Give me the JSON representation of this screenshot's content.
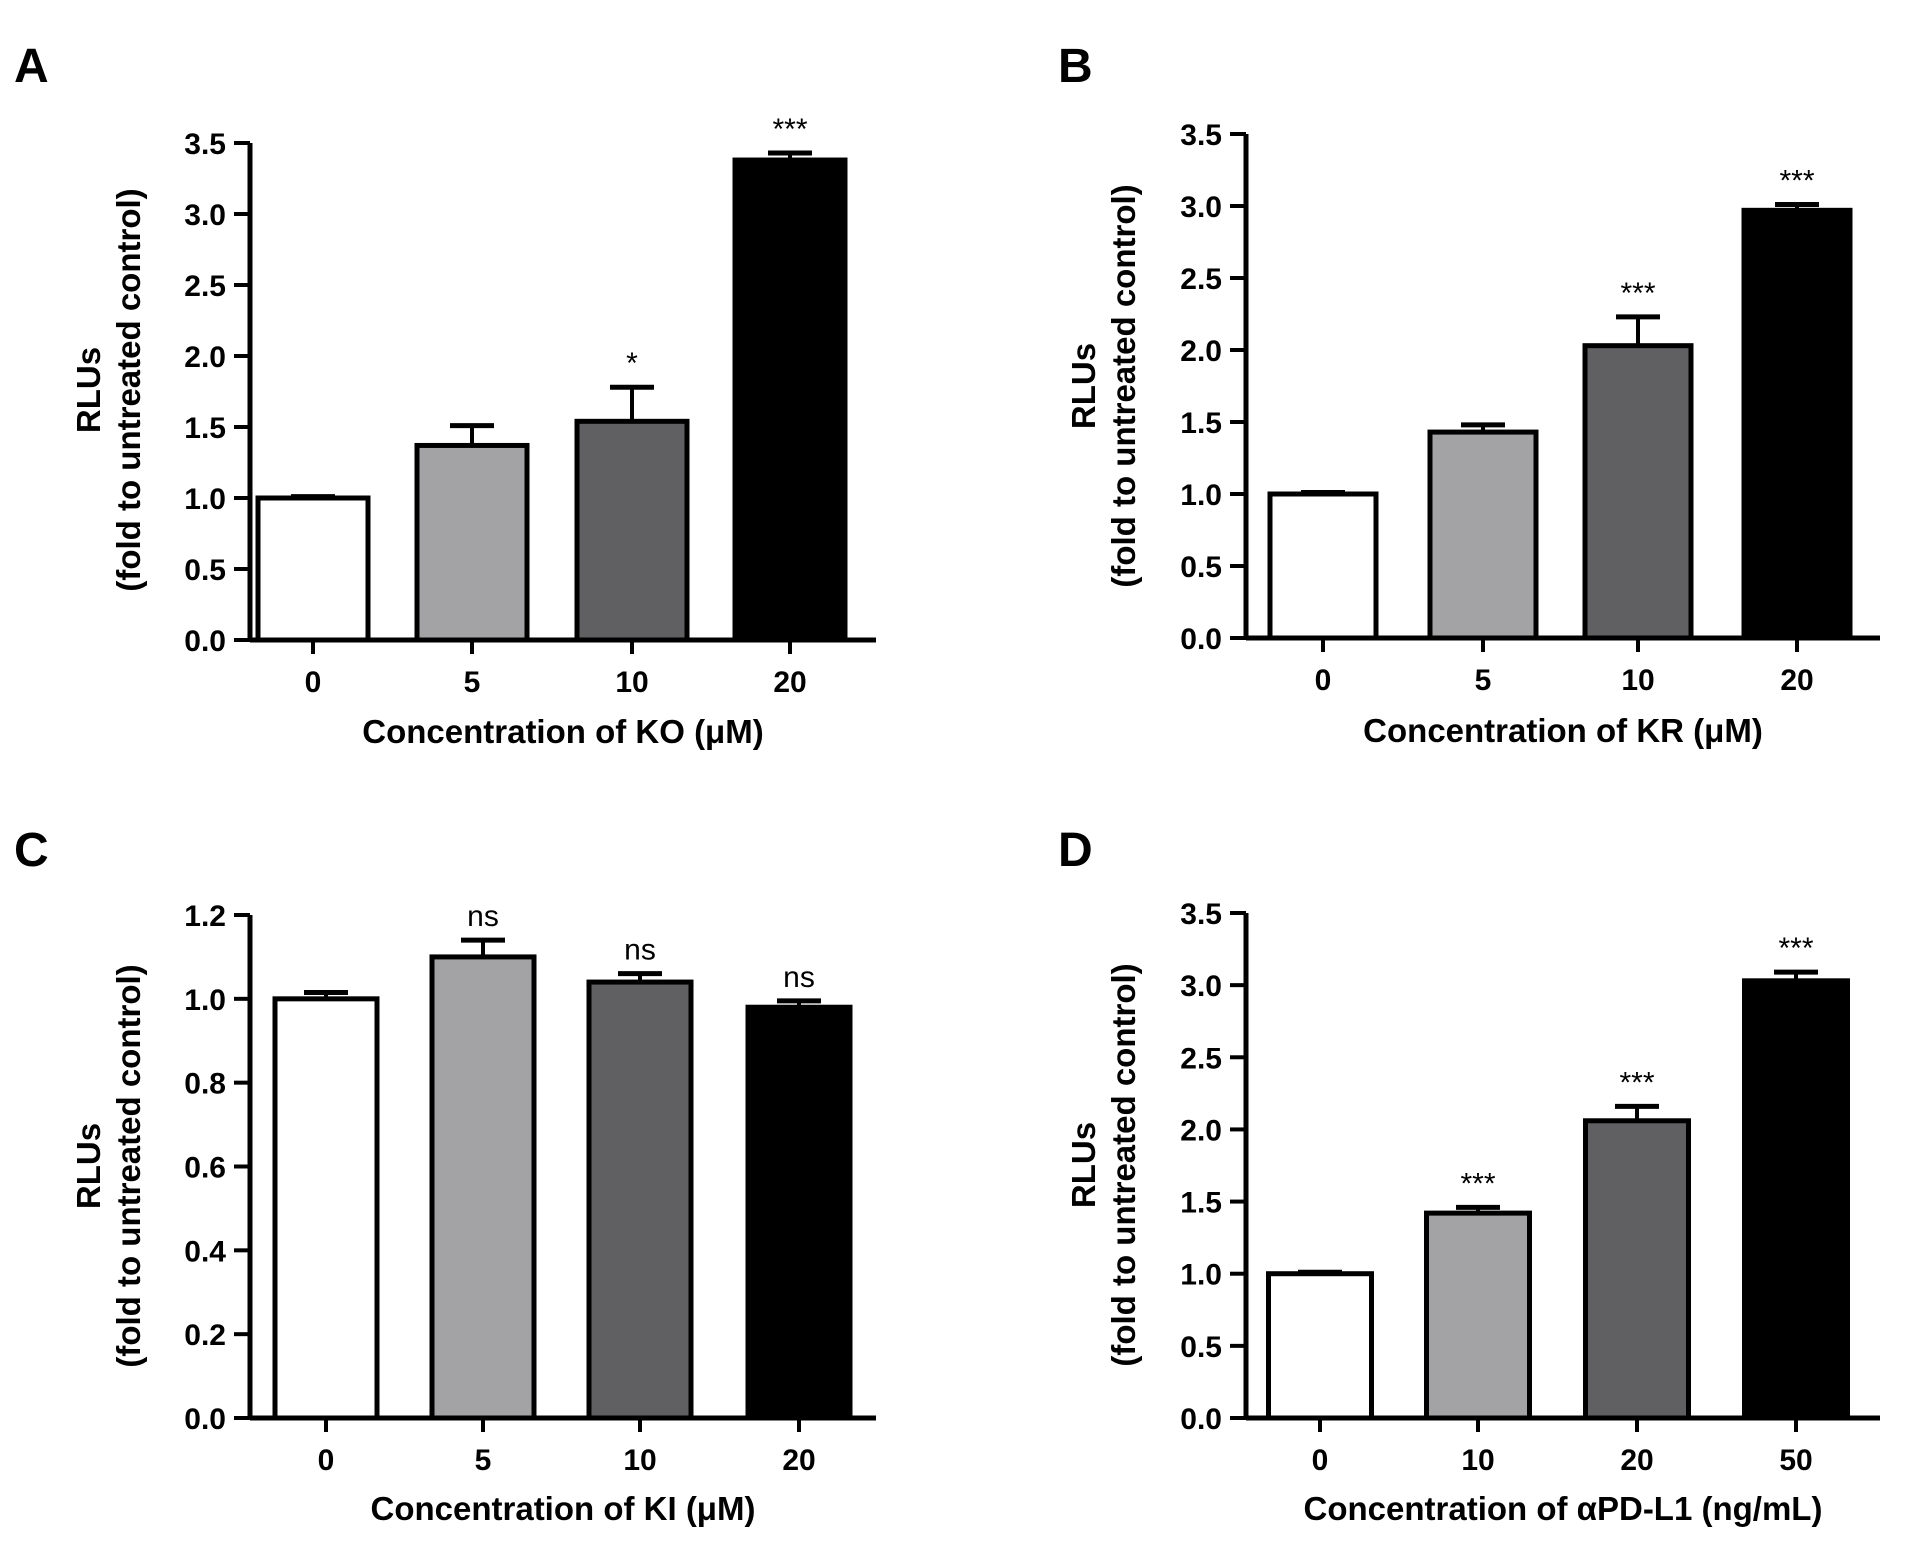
{
  "colors": {
    "axis": "#000000",
    "bar_fills": [
      "#ffffff",
      "#a3a3a6",
      "#606062",
      "#000000"
    ]
  },
  "chart_data": [
    {
      "panel": "A",
      "type": "bar",
      "categories": [
        "0",
        "5",
        "10",
        "20"
      ],
      "values": [
        1.0,
        1.37,
        1.54,
        3.38
      ],
      "errors": [
        0.01,
        0.14,
        0.24,
        0.05
      ],
      "significance": [
        "",
        "",
        "*",
        "***"
      ],
      "xlabel": "Concentration of KO (μM)",
      "ylabel_line1": "RLUs",
      "ylabel_line2": "(fold to untreated control)",
      "ylim": [
        0,
        3.5
      ],
      "yticks": [
        0,
        0.5,
        1.0,
        1.5,
        2.0,
        2.5,
        3.0,
        3.5
      ],
      "ytick_labels": [
        "0.0",
        "0.5",
        "1.0",
        "1.5",
        "2.0",
        "2.5",
        "3.0",
        "3.5"
      ]
    },
    {
      "panel": "B",
      "type": "bar",
      "categories": [
        "0",
        "5",
        "10",
        "20"
      ],
      "values": [
        1.0,
        1.43,
        2.03,
        2.97
      ],
      "errors": [
        0.01,
        0.05,
        0.2,
        0.04
      ],
      "significance": [
        "",
        "",
        "***",
        "***"
      ],
      "xlabel": "Concentration of KR (μM)",
      "ylabel_line1": "RLUs",
      "ylabel_line2": "(fold to untreated control)",
      "ylim": [
        0,
        3.5
      ],
      "yticks": [
        0,
        0.5,
        1.0,
        1.5,
        2.0,
        2.5,
        3.0,
        3.5
      ],
      "ytick_labels": [
        "0.0",
        "0.5",
        "1.0",
        "1.5",
        "2.0",
        "2.5",
        "3.0",
        "3.5"
      ]
    },
    {
      "panel": "C",
      "type": "bar",
      "categories": [
        "0",
        "5",
        "10",
        "20"
      ],
      "values": [
        1.0,
        1.1,
        1.04,
        0.98
      ],
      "errors": [
        0.015,
        0.04,
        0.02,
        0.015
      ],
      "significance": [
        "",
        "ns",
        "ns",
        "ns"
      ],
      "xlabel": "Concentration of KI (μM)",
      "ylabel_line1": "RLUs",
      "ylabel_line2": "(fold to untreated control)",
      "ylim": [
        0,
        1.2
      ],
      "yticks": [
        0,
        0.2,
        0.4,
        0.6,
        0.8,
        1.0,
        1.2
      ],
      "ytick_labels": [
        "0.0",
        "0.2",
        "0.4",
        "0.6",
        "0.8",
        "1.0",
        "1.2"
      ]
    },
    {
      "panel": "D",
      "type": "bar",
      "categories": [
        "0",
        "10",
        "20",
        "50"
      ],
      "values": [
        1.0,
        1.42,
        2.06,
        3.03
      ],
      "errors": [
        0.01,
        0.04,
        0.1,
        0.06
      ],
      "significance": [
        "",
        "***",
        "***",
        "***"
      ],
      "xlabel": "Concentration of αPD-L1 (ng/mL)",
      "ylabel_line1": "RLUs",
      "ylabel_line2": "(fold to untreated control)",
      "ylim": [
        0,
        3.5
      ],
      "yticks": [
        0,
        0.5,
        1.0,
        1.5,
        2.0,
        2.5,
        3.0,
        3.5
      ],
      "ytick_labels": [
        "0.0",
        "0.5",
        "1.0",
        "1.5",
        "2.0",
        "2.5",
        "3.0",
        "3.5"
      ]
    }
  ]
}
